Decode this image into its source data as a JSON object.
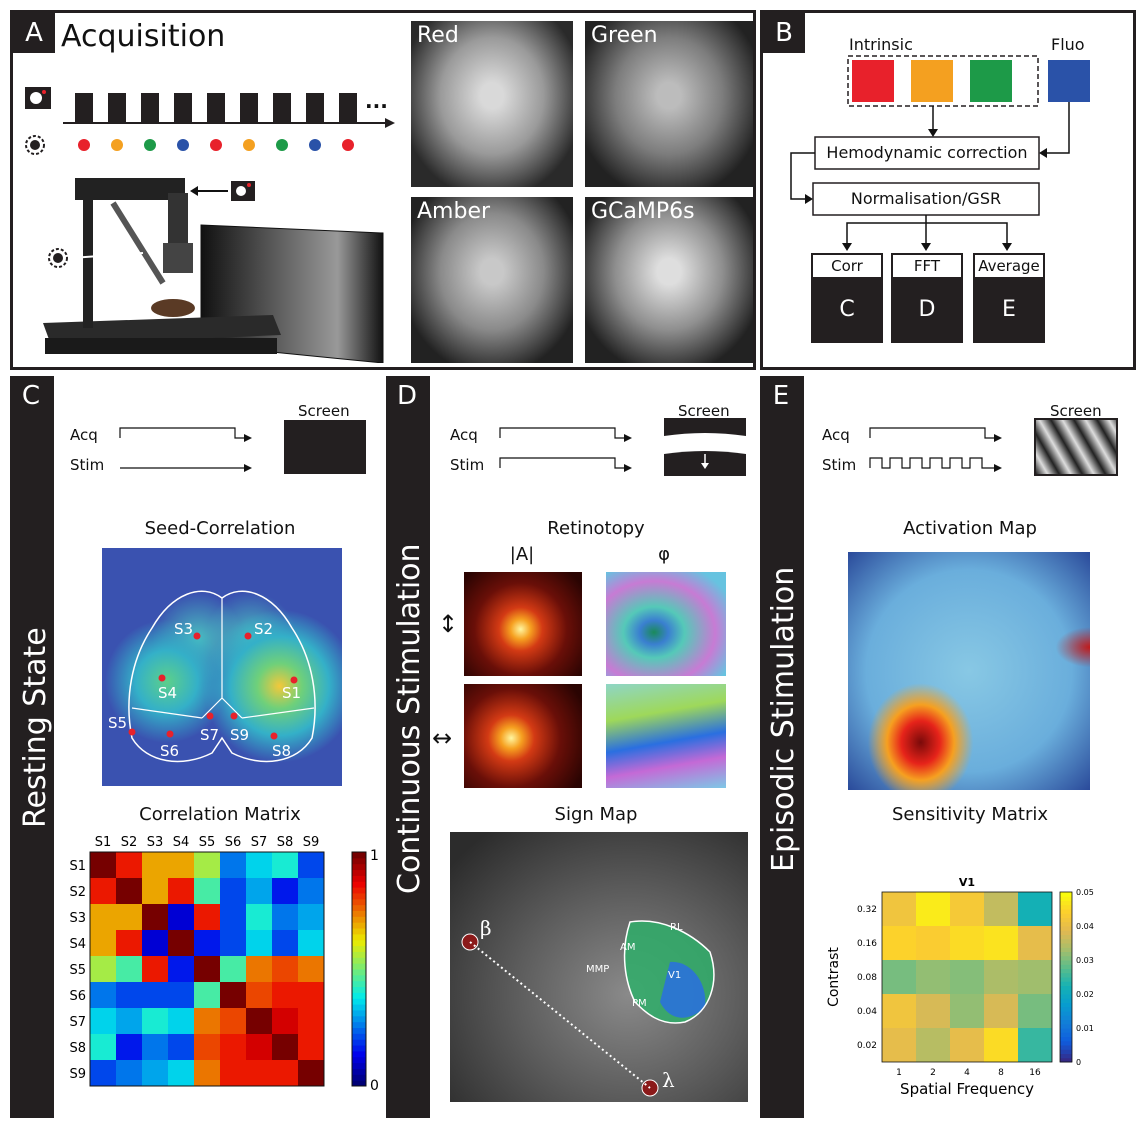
{
  "panelA": {
    "letter": "A",
    "title": "Acquisition",
    "dots": [
      "#e8212b",
      "#f4a020",
      "#1d9a48",
      "#2a52a8",
      "#e8212b",
      "#f4a020",
      "#1d9a48",
      "#2a52a8",
      "#e8212b"
    ],
    "ellipsis": "...",
    "images": [
      {
        "label": "Red"
      },
      {
        "label": "Green"
      },
      {
        "label": "Amber"
      },
      {
        "label": "GCaMP6s"
      }
    ]
  },
  "panelB": {
    "letter": "B",
    "intrinsic": "Intrinsic",
    "fluo": "Fluo",
    "hemo": "Hemodynamic correction",
    "norm": "Normalisation/GSR",
    "boxes": [
      {
        "top": "Corr",
        "bottom": "C"
      },
      {
        "top": "FFT",
        "bottom": "D"
      },
      {
        "top": "Average",
        "bottom": "E"
      }
    ],
    "colors": {
      "red": "#e8212b",
      "amber": "#f4a020",
      "green": "#1d9a48",
      "blue": "#2a52a8"
    }
  },
  "panelC": {
    "letter": "C",
    "side": "Resting State",
    "acq": "Acq",
    "stim": "Stim",
    "screen": "Screen",
    "seed_title": "Seed-Correlation",
    "seeds": [
      "S3",
      "S2",
      "S4",
      "S1",
      "S5",
      "S7",
      "S9",
      "S6",
      "S8"
    ],
    "matrix_title": "Correlation Matrix",
    "labels": [
      "S1",
      "S2",
      "S3",
      "S4",
      "S5",
      "S6",
      "S7",
      "S8",
      "S9"
    ],
    "cbar_max": "1",
    "cbar_min": "0"
  },
  "chart_data": {
    "type": "heatmap",
    "title": "Correlation Matrix",
    "rows": [
      "S1",
      "S2",
      "S3",
      "S4",
      "S5",
      "S6",
      "S7",
      "S8",
      "S9"
    ],
    "cols": [
      "S1",
      "S2",
      "S3",
      "S4",
      "S5",
      "S6",
      "S7",
      "S8",
      "S9"
    ],
    "range": [
      0,
      1
    ],
    "values": [
      [
        1.0,
        0.85,
        0.7,
        0.7,
        0.55,
        0.25,
        0.35,
        0.4,
        0.2
      ],
      [
        0.85,
        1.0,
        0.7,
        0.85,
        0.45,
        0.2,
        0.3,
        0.15,
        0.25
      ],
      [
        0.7,
        0.7,
        1.0,
        0.1,
        0.85,
        0.2,
        0.4,
        0.25,
        0.3
      ],
      [
        0.7,
        0.85,
        0.1,
        1.0,
        0.15,
        0.2,
        0.35,
        0.2,
        0.35
      ],
      [
        0.55,
        0.45,
        0.85,
        0.15,
        1.0,
        0.45,
        0.75,
        0.8,
        0.75
      ],
      [
        0.25,
        0.2,
        0.2,
        0.2,
        0.45,
        1.0,
        0.8,
        0.85,
        0.85
      ],
      [
        0.35,
        0.3,
        0.4,
        0.35,
        0.75,
        0.8,
        1.0,
        0.9,
        0.85
      ],
      [
        0.4,
        0.15,
        0.25,
        0.2,
        0.8,
        0.85,
        0.9,
        1.0,
        0.85
      ],
      [
        0.2,
        0.25,
        0.3,
        0.35,
        0.75,
        0.85,
        0.85,
        0.85,
        1.0
      ]
    ]
  },
  "panelD": {
    "letter": "D",
    "side": "Continuous Stimulation",
    "acq": "Acq",
    "stim": "Stim",
    "screen": "Screen",
    "retino_title": "Retinotopy",
    "amp": "|A|",
    "phase": "φ",
    "sign_title": "Sign Map",
    "areas": [
      "RL",
      "AM",
      "MMP",
      "V1",
      "PM"
    ],
    "beta": "β",
    "lambda": "λ"
  },
  "panelE": {
    "letter": "E",
    "side": "Episodic Stimulation",
    "acq": "Acq",
    "stim": "Stim",
    "screen": "Screen",
    "act_title": "Activation Map",
    "sens_title": "Sensitivity Matrix",
    "heat_title": "V1",
    "ylabel": "Contrast",
    "xlabel": "Spatial Frequency",
    "yticks": [
      "0.32",
      "0.16",
      "0.08",
      "0.04",
      "0.02"
    ],
    "xticks": [
      "1",
      "2",
      "4",
      "8",
      "16"
    ],
    "cticks": [
      "0.05",
      "0.04",
      "0.03",
      "0.02",
      "0.01",
      "0"
    ],
    "values": [
      [
        0.042,
        0.048,
        0.043,
        0.036,
        0.022
      ],
      [
        0.045,
        0.044,
        0.046,
        0.047,
        0.04
      ],
      [
        0.03,
        0.032,
        0.031,
        0.034,
        0.033
      ],
      [
        0.042,
        0.038,
        0.032,
        0.038,
        0.03
      ],
      [
        0.04,
        0.035,
        0.04,
        0.046,
        0.025
      ]
    ]
  }
}
